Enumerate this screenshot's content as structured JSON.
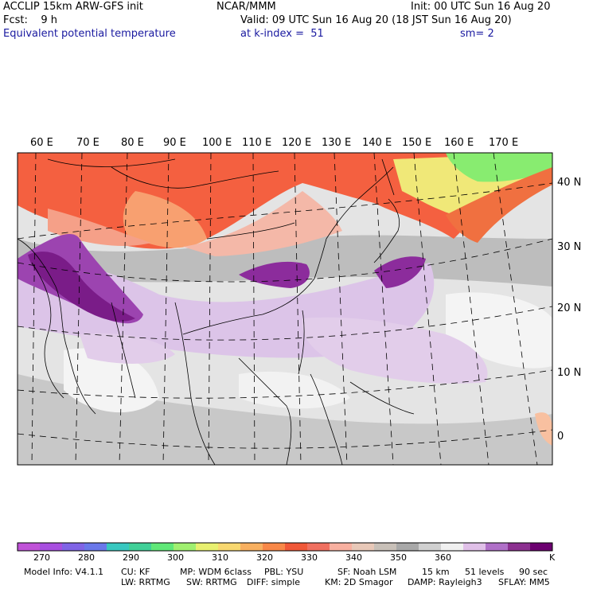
{
  "header": {
    "model": "ACCLIP 15km ARW-GFS init",
    "center": "NCAR/MMM",
    "init": "Init: 00 UTC Sun 16 Aug 20",
    "fcst": "Fcst:    9 h",
    "valid": "Valid: 09 UTC Sun 16 Aug 20 (18 JST Sun 16 Aug 20)",
    "field": "Equivalent potential temperature",
    "level": "at k-index =  51",
    "smooth": "sm= 2"
  },
  "map": {
    "lon_labels": [
      "60 E",
      "70 E",
      "80 E",
      "90 E",
      "100 E",
      "110 E",
      "120 E",
      "130 E",
      "140 E",
      "150 E",
      "160 E",
      "170 E"
    ],
    "lat_labels": [
      "40 N",
      "30 N",
      "20 N",
      "10 N",
      "0"
    ]
  },
  "colorbar": {
    "colors": [
      "#c052d8",
      "#a84fe0",
      "#8064e6",
      "#6a78ea",
      "#38c8c0",
      "#40d098",
      "#60e878",
      "#a0f070",
      "#e8f070",
      "#f8d870",
      "#f8b060",
      "#f88848",
      "#f05838",
      "#f07060",
      "#f8b0a0",
      "#e8c8b8",
      "#c8c0b8",
      "#a8a8a8",
      "#d0d0d0",
      "#f0f0f0",
      "#e0c0e8",
      "#b070c8",
      "#8c3090",
      "#6c0070"
    ],
    "labels": [
      "270",
      "280",
      "290",
      "300",
      "310",
      "320",
      "330",
      "340",
      "350",
      "360"
    ],
    "unit": "K"
  },
  "footer": {
    "line1": [
      "Model Info: V4.1.1",
      "CU: KF",
      "MP: WDM 6class",
      "PBL: YSU",
      "SF: Noah LSM",
      "15 km",
      "51 levels",
      "90 sec"
    ],
    "line2": [
      "LW: RRTMG",
      "SW: RRTMG",
      "DIFF: simple",
      "KM: 2D Smagor",
      "DAMP: Rayleigh3",
      "SFLAY: MM5"
    ]
  }
}
